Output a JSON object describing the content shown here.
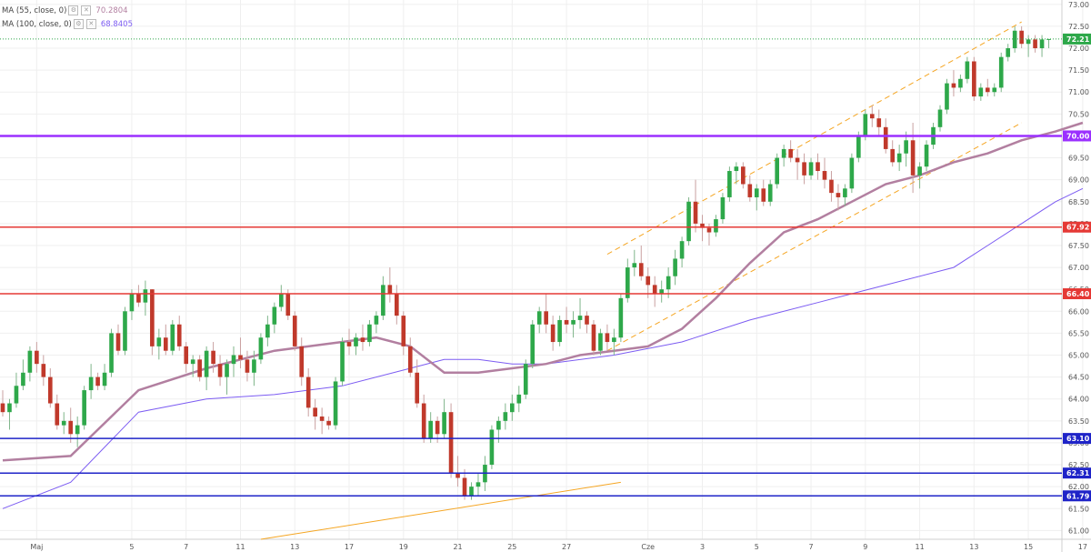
{
  "legend": [
    {
      "label": "MA (55, close, 0)",
      "value": "70.2804",
      "color": "#b27fa0"
    },
    {
      "label": "MA (100, close, 0)",
      "value": "68.8405",
      "color": "#7c5cf2"
    }
  ],
  "chart_data": {
    "type": "candlestick",
    "ylim": [
      60.8,
      73.1
    ],
    "y_ticks": [
      61.0,
      61.5,
      62.0,
      62.5,
      63.0,
      63.5,
      64.0,
      64.5,
      65.0,
      65.5,
      66.0,
      66.5,
      67.0,
      67.5,
      68.0,
      68.5,
      69.0,
      69.5,
      70.0,
      70.5,
      71.0,
      71.5,
      72.0,
      72.5,
      73.0
    ],
    "x_ticks": [
      {
        "label": "Maj",
        "i": 5
      },
      {
        "label": "5",
        "i": 19
      },
      {
        "label": "7",
        "i": 27
      },
      {
        "label": "11",
        "i": 35
      },
      {
        "label": "13",
        "i": 43
      },
      {
        "label": "17",
        "i": 51
      },
      {
        "label": "19",
        "i": 59
      },
      {
        "label": "21",
        "i": 67
      },
      {
        "label": "25",
        "i": 75
      },
      {
        "label": "27",
        "i": 83
      },
      {
        "label": "Cze",
        "i": 95
      },
      {
        "label": "3",
        "i": 103
      },
      {
        "label": "5",
        "i": 111
      },
      {
        "label": "7",
        "i": 119
      },
      {
        "label": "9",
        "i": 127
      },
      {
        "label": "11",
        "i": 135
      },
      {
        "label": "13",
        "i": 143
      },
      {
        "label": "15",
        "i": 151
      },
      {
        "label": "17",
        "i": 159
      }
    ],
    "candles": [
      [
        63.9,
        64.2,
        63.6,
        63.7
      ],
      [
        63.7,
        64.0,
        63.3,
        63.9
      ],
      [
        63.9,
        64.6,
        63.8,
        64.3
      ],
      [
        64.3,
        64.9,
        64.2,
        64.6
      ],
      [
        64.6,
        65.2,
        64.4,
        65.1
      ],
      [
        65.1,
        65.3,
        64.6,
        64.8
      ],
      [
        64.8,
        65.0,
        64.3,
        64.5
      ],
      [
        64.5,
        64.7,
        63.8,
        63.9
      ],
      [
        63.9,
        64.1,
        63.3,
        63.4
      ],
      [
        63.4,
        63.7,
        63.2,
        63.5
      ],
      [
        63.5,
        63.8,
        63.0,
        63.2
      ],
      [
        63.2,
        63.6,
        62.9,
        63.4
      ],
      [
        63.4,
        64.3,
        63.3,
        64.2
      ],
      [
        64.2,
        64.8,
        64.0,
        64.5
      ],
      [
        64.5,
        64.6,
        64.2,
        64.3
      ],
      [
        64.3,
        64.8,
        64.2,
        64.6
      ],
      [
        64.6,
        65.6,
        64.5,
        65.5
      ],
      [
        65.5,
        65.7,
        65.0,
        65.1
      ],
      [
        65.1,
        66.1,
        65.0,
        66.0
      ],
      [
        66.0,
        66.5,
        65.8,
        66.4
      ],
      [
        66.4,
        66.6,
        66.1,
        66.2
      ],
      [
        66.2,
        66.7,
        65.9,
        66.5
      ],
      [
        66.5,
        66.5,
        65.0,
        65.2
      ],
      [
        65.2,
        65.6,
        64.9,
        65.4
      ],
      [
        65.4,
        65.7,
        65.0,
        65.1
      ],
      [
        65.1,
        65.8,
        65.0,
        65.7
      ],
      [
        65.7,
        65.9,
        65.1,
        65.2
      ],
      [
        65.2,
        65.3,
        64.6,
        64.8
      ],
      [
        64.8,
        65.0,
        64.5,
        64.9
      ],
      [
        64.9,
        65.0,
        64.4,
        64.5
      ],
      [
        64.5,
        65.2,
        64.2,
        65.1
      ],
      [
        65.1,
        65.3,
        64.6,
        64.8
      ],
      [
        64.8,
        65.0,
        64.3,
        64.5
      ],
      [
        64.5,
        64.9,
        64.1,
        64.8
      ],
      [
        64.8,
        65.2,
        64.5,
        65.0
      ],
      [
        65.0,
        65.4,
        64.7,
        64.9
      ],
      [
        64.9,
        65.1,
        64.4,
        64.6
      ],
      [
        64.6,
        65.1,
        64.3,
        64.9
      ],
      [
        64.9,
        65.5,
        64.8,
        65.4
      ],
      [
        65.4,
        65.9,
        65.2,
        65.7
      ],
      [
        65.7,
        66.2,
        65.5,
        66.1
      ],
      [
        66.1,
        66.6,
        66.0,
        66.4
      ],
      [
        66.4,
        66.5,
        65.8,
        65.9
      ],
      [
        65.9,
        66.0,
        65.1,
        65.2
      ],
      [
        65.2,
        65.4,
        64.3,
        64.5
      ],
      [
        64.5,
        64.7,
        63.6,
        63.8
      ],
      [
        63.8,
        64.0,
        63.3,
        63.6
      ],
      [
        63.6,
        63.8,
        63.2,
        63.5
      ],
      [
        63.5,
        63.6,
        63.3,
        63.4
      ],
      [
        63.4,
        64.5,
        63.3,
        64.4
      ],
      [
        64.4,
        65.4,
        64.3,
        65.3
      ],
      [
        65.3,
        65.6,
        65.0,
        65.2
      ],
      [
        65.2,
        65.5,
        65.0,
        65.4
      ],
      [
        65.4,
        65.7,
        65.1,
        65.3
      ],
      [
        65.3,
        65.8,
        65.2,
        65.7
      ],
      [
        65.7,
        66.0,
        65.5,
        65.9
      ],
      [
        65.9,
        66.8,
        65.8,
        66.6
      ],
      [
        66.6,
        67.0,
        66.2,
        66.4
      ],
      [
        66.4,
        66.6,
        65.7,
        65.9
      ],
      [
        65.9,
        66.0,
        65.0,
        65.2
      ],
      [
        65.2,
        65.4,
        64.5,
        64.6
      ],
      [
        64.6,
        64.9,
        63.8,
        63.9
      ],
      [
        63.9,
        64.1,
        63.0,
        63.1
      ],
      [
        63.1,
        63.7,
        63.0,
        63.5
      ],
      [
        63.5,
        63.6,
        63.0,
        63.2
      ],
      [
        63.2,
        64.0,
        63.1,
        63.7
      ],
      [
        63.7,
        63.9,
        62.2,
        62.3
      ],
      [
        62.3,
        62.7,
        62.0,
        62.2
      ],
      [
        62.2,
        62.4,
        61.7,
        61.8
      ],
      [
        61.8,
        62.1,
        61.7,
        62.0
      ],
      [
        62.0,
        62.3,
        61.8,
        62.1
      ],
      [
        62.1,
        62.7,
        61.9,
        62.5
      ],
      [
        62.5,
        63.4,
        62.4,
        63.3
      ],
      [
        63.3,
        63.6,
        63.0,
        63.5
      ],
      [
        63.5,
        63.9,
        63.3,
        63.7
      ],
      [
        63.7,
        64.1,
        63.5,
        63.9
      ],
      [
        63.9,
        64.3,
        63.7,
        64.1
      ],
      [
        64.1,
        64.9,
        64.0,
        64.8
      ],
      [
        64.8,
        65.8,
        64.7,
        65.7
      ],
      [
        65.7,
        66.1,
        65.5,
        66.0
      ],
      [
        66.0,
        66.4,
        65.5,
        65.7
      ],
      [
        65.7,
        65.9,
        65.1,
        65.3
      ],
      [
        65.3,
        65.9,
        65.2,
        65.8
      ],
      [
        65.8,
        66.1,
        65.5,
        65.7
      ],
      [
        65.7,
        66.0,
        65.4,
        65.8
      ],
      [
        65.8,
        66.3,
        65.6,
        65.9
      ],
      [
        65.9,
        66.0,
        65.5,
        65.7
      ],
      [
        65.7,
        65.8,
        65.0,
        65.1
      ],
      [
        65.1,
        65.6,
        65.0,
        65.5
      ],
      [
        65.5,
        65.7,
        65.1,
        65.3
      ],
      [
        65.3,
        65.6,
        65.0,
        65.4
      ],
      [
        65.4,
        66.4,
        65.3,
        66.3
      ],
      [
        66.3,
        67.2,
        66.2,
        67.0
      ],
      [
        67.0,
        67.4,
        66.8,
        67.1
      ],
      [
        67.1,
        67.5,
        66.7,
        66.8
      ],
      [
        66.8,
        67.0,
        66.3,
        66.6
      ],
      [
        66.6,
        66.8,
        66.1,
        66.4
      ],
      [
        66.4,
        66.7,
        66.2,
        66.5
      ],
      [
        66.5,
        67.0,
        66.3,
        66.8
      ],
      [
        66.8,
        67.4,
        66.6,
        67.2
      ],
      [
        67.2,
        67.7,
        67.0,
        67.6
      ],
      [
        67.6,
        68.6,
        67.5,
        68.5
      ],
      [
        68.5,
        69.0,
        67.8,
        68.0
      ],
      [
        68.0,
        68.2,
        67.6,
        67.9
      ],
      [
        67.9,
        68.0,
        67.5,
        67.8
      ],
      [
        67.8,
        68.2,
        67.7,
        68.1
      ],
      [
        68.1,
        68.7,
        68.0,
        68.6
      ],
      [
        68.6,
        69.3,
        68.5,
        69.2
      ],
      [
        69.2,
        69.4,
        68.9,
        69.3
      ],
      [
        69.3,
        69.4,
        68.8,
        68.9
      ],
      [
        68.9,
        69.1,
        68.5,
        68.6
      ],
      [
        68.6,
        68.9,
        68.3,
        68.8
      ],
      [
        68.8,
        69.0,
        68.4,
        68.5
      ],
      [
        68.5,
        69.0,
        68.4,
        68.9
      ],
      [
        68.9,
        69.6,
        68.8,
        69.5
      ],
      [
        69.5,
        69.8,
        69.3,
        69.7
      ],
      [
        69.7,
        69.9,
        69.4,
        69.5
      ],
      [
        69.5,
        69.7,
        69.0,
        69.4
      ],
      [
        69.4,
        69.6,
        68.9,
        69.1
      ],
      [
        69.1,
        69.5,
        69.0,
        69.4
      ],
      [
        69.4,
        69.6,
        69.0,
        69.2
      ],
      [
        69.2,
        69.5,
        68.8,
        69.0
      ],
      [
        69.0,
        69.2,
        68.5,
        68.7
      ],
      [
        68.7,
        68.9,
        68.3,
        68.6
      ],
      [
        68.6,
        68.9,
        68.4,
        68.8
      ],
      [
        68.8,
        69.6,
        68.7,
        69.5
      ],
      [
        69.5,
        70.1,
        69.4,
        70.0
      ],
      [
        70.0,
        70.6,
        69.9,
        70.5
      ],
      [
        70.5,
        70.7,
        70.2,
        70.4
      ],
      [
        70.4,
        70.6,
        70.0,
        70.2
      ],
      [
        70.2,
        70.4,
        69.6,
        69.7
      ],
      [
        69.7,
        69.9,
        69.3,
        69.4
      ],
      [
        69.4,
        69.8,
        69.2,
        69.6
      ],
      [
        69.6,
        70.1,
        69.3,
        69.9
      ],
      [
        69.9,
        70.3,
        68.7,
        69.1
      ],
      [
        69.1,
        69.4,
        68.8,
        69.3
      ],
      [
        69.3,
        69.9,
        69.2,
        69.8
      ],
      [
        69.8,
        70.3,
        69.7,
        70.2
      ],
      [
        70.2,
        70.7,
        70.1,
        70.6
      ],
      [
        70.6,
        71.3,
        70.5,
        71.2
      ],
      [
        71.2,
        71.5,
        70.9,
        71.1
      ],
      [
        71.1,
        71.4,
        71.0,
        71.3
      ],
      [
        71.3,
        71.8,
        71.2,
        71.7
      ],
      [
        71.7,
        71.8,
        70.8,
        70.9
      ],
      [
        70.9,
        71.2,
        70.8,
        71.1
      ],
      [
        71.1,
        71.3,
        70.9,
        71.0
      ],
      [
        71.0,
        71.2,
        70.9,
        71.1
      ],
      [
        71.1,
        71.9,
        71.0,
        71.8
      ],
      [
        71.8,
        72.1,
        71.7,
        72.0
      ],
      [
        72.0,
        72.5,
        71.9,
        72.4
      ],
      [
        72.4,
        72.5,
        72.0,
        72.1
      ],
      [
        72.1,
        72.3,
        71.8,
        72.2
      ],
      [
        72.2,
        72.3,
        71.9,
        72.0
      ],
      [
        72.0,
        72.3,
        71.8,
        72.2
      ],
      [
        72.2,
        72.2,
        72.0,
        72.21
      ]
    ],
    "horizontal_levels": [
      {
        "value": 70.0,
        "label": "70.00",
        "color": "#9b30ff"
      },
      {
        "value": 67.92,
        "label": "67.92",
        "color": "#e53935"
      },
      {
        "value": 66.4,
        "label": "66.40",
        "color": "#e53935"
      },
      {
        "value": 63.1,
        "label": "63.10",
        "color": "#1f24c8"
      },
      {
        "value": 62.31,
        "label": "62.31",
        "color": "#1f24c8"
      },
      {
        "value": 61.79,
        "label": "61.79",
        "color": "#1f24c8"
      }
    ],
    "last_price": {
      "value": 72.21,
      "label": "72.21",
      "color": "#2ea84a"
    },
    "ma55": [
      [
        0,
        62.6
      ],
      [
        10,
        62.7
      ],
      [
        20,
        64.2
      ],
      [
        30,
        64.7
      ],
      [
        40,
        65.1
      ],
      [
        50,
        65.3
      ],
      [
        55,
        65.4
      ],
      [
        60,
        65.2
      ],
      [
        65,
        64.6
      ],
      [
        70,
        64.6
      ],
      [
        75,
        64.7
      ],
      [
        80,
        64.8
      ],
      [
        85,
        65.0
      ],
      [
        90,
        65.1
      ],
      [
        95,
        65.2
      ],
      [
        100,
        65.6
      ],
      [
        105,
        66.3
      ],
      [
        110,
        67.1
      ],
      [
        115,
        67.8
      ],
      [
        120,
        68.1
      ],
      [
        125,
        68.5
      ],
      [
        130,
        68.9
      ],
      [
        135,
        69.1
      ],
      [
        140,
        69.4
      ],
      [
        145,
        69.6
      ],
      [
        150,
        69.9
      ],
      [
        155,
        70.1
      ],
      [
        159,
        70.3
      ]
    ],
    "ma100": [
      [
        0,
        61.5
      ],
      [
        10,
        62.1
      ],
      [
        20,
        63.7
      ],
      [
        30,
        64.0
      ],
      [
        40,
        64.1
      ],
      [
        50,
        64.3
      ],
      [
        60,
        64.7
      ],
      [
        65,
        64.9
      ],
      [
        70,
        64.9
      ],
      [
        75,
        64.8
      ],
      [
        80,
        64.8
      ],
      [
        90,
        65.0
      ],
      [
        100,
        65.3
      ],
      [
        110,
        65.8
      ],
      [
        120,
        66.2
      ],
      [
        125,
        66.4
      ],
      [
        130,
        66.6
      ],
      [
        140,
        67.0
      ],
      [
        145,
        67.5
      ],
      [
        150,
        68.0
      ],
      [
        155,
        68.5
      ],
      [
        159,
        68.8
      ]
    ],
    "channel": [
      {
        "from": [
          89,
          67.3
        ],
        "to": [
          150,
          72.6
        ]
      },
      {
        "from": [
          89,
          65.1
        ],
        "to": [
          150,
          70.3
        ]
      }
    ],
    "support_trend": {
      "from": [
        38,
        60.8
      ],
      "to": [
        91,
        62.1
      ]
    }
  }
}
